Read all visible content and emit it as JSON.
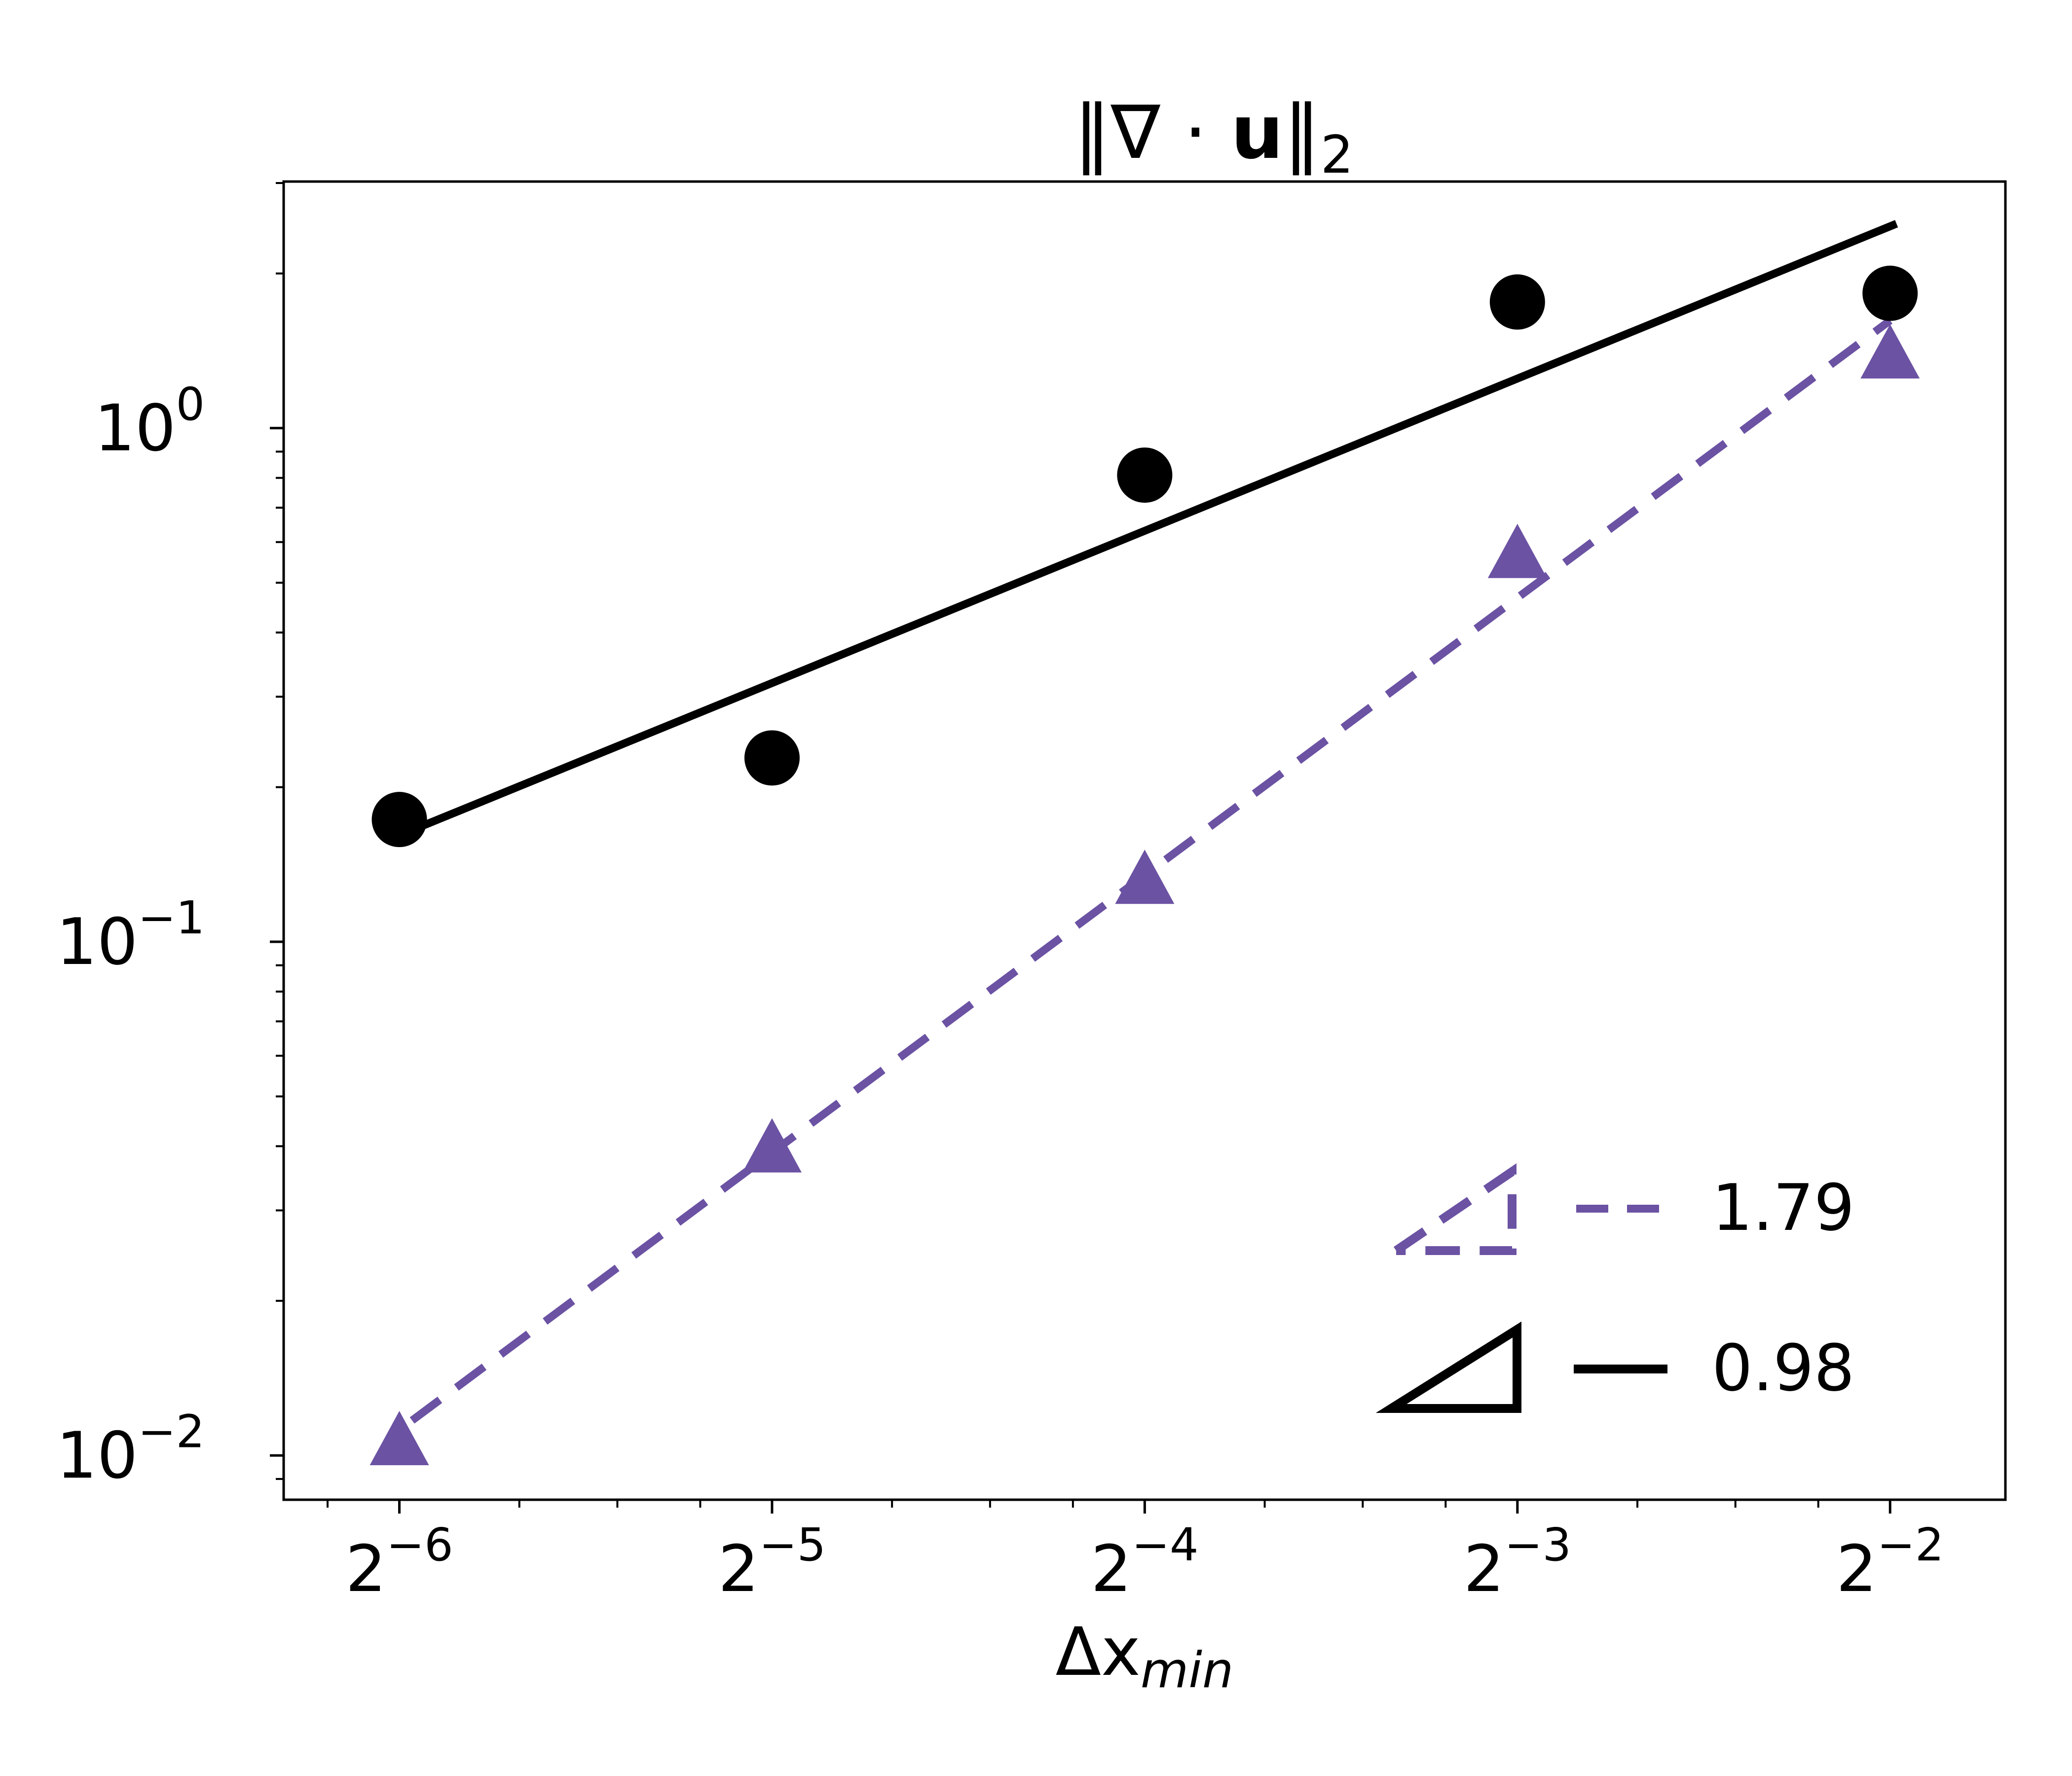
{
  "chart_data": {
    "type": "scatter",
    "title": {
      "prefix": "‖∇ · ",
      "bold": "u",
      "suffix": "‖",
      "sub": "2"
    },
    "xlabel": {
      "main": "Δx",
      "sub": "min"
    },
    "x_scale": "log2",
    "y_scale": "log10",
    "xlim": [
      0.0126,
      0.3098
    ],
    "ylim": [
      0.0082,
      3.02
    ],
    "x_ticks": [
      {
        "value": 0.015625,
        "base": "2",
        "exp": "−6"
      },
      {
        "value": 0.03125,
        "base": "2",
        "exp": "−5"
      },
      {
        "value": 0.0625,
        "base": "2",
        "exp": "−4"
      },
      {
        "value": 0.125,
        "base": "2",
        "exp": "−3"
      },
      {
        "value": 0.25,
        "base": "2",
        "exp": "−2"
      }
    ],
    "y_ticks": [
      {
        "value": 0.01,
        "base": "10",
        "exp": "−2"
      },
      {
        "value": 0.1,
        "base": "10",
        "exp": "−1"
      },
      {
        "value": 1,
        "base": "10",
        "exp": "0"
      }
    ],
    "grid": false,
    "legend_position": "lower-right",
    "series": [
      {
        "marker": "circle",
        "color": "#000000",
        "line_style": "solid",
        "x": [
          0.015625,
          0.03125,
          0.0625,
          0.125,
          0.25
        ],
        "y": [
          0.173,
          0.228,
          0.81,
          1.76,
          1.83
        ],
        "fit": {
          "x": [
            0.016,
            0.253
          ],
          "y": [
            0.165,
            2.5
          ]
        },
        "slope_label": "0.98"
      },
      {
        "marker": "triangle",
        "color": "#6b52a3",
        "line_style": "dashed",
        "x": [
          0.015625,
          0.03125,
          0.0625,
          0.125,
          0.25
        ],
        "y": [
          0.0105,
          0.039,
          0.13,
          0.56,
          1.37
        ],
        "fit": {
          "x": [
            0.016,
            0.25
          ],
          "y": [
            0.0117,
            1.62
          ]
        },
        "slope_label": "1.79"
      }
    ]
  }
}
